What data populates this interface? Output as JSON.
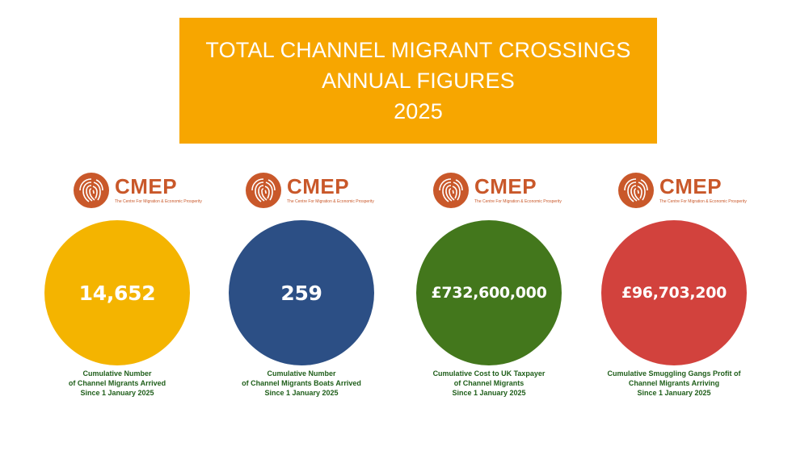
{
  "banner": {
    "line1": "TOTAL CHANNEL MIGRANT CROSSINGS",
    "line2": "ANNUAL FIGURES",
    "line3": "2025",
    "color": "#f7a600"
  },
  "logo": {
    "wordmark": "CMEP",
    "tagline": "The Centre For Migration & Economic Prosperity",
    "color": "#c9582a"
  },
  "stats": [
    {
      "value": "14,652",
      "caption": [
        "Cumulative Number",
        "of Channel Migrants Arrived",
        "Since 1 January 2025"
      ],
      "color": "#f4b400"
    },
    {
      "value": "259",
      "caption": [
        "Cumulative Number",
        "of Channel Migrants Boats Arrived",
        "Since 1 January 2025"
      ],
      "color": "#2c4f85"
    },
    {
      "value": "£732,600,000",
      "caption": [
        "Cumulative Cost to UK Taxpayer",
        "of  Channel Migrants",
        "Since 1 January 2025"
      ],
      "color": "#43771c"
    },
    {
      "value": "£96,703,200",
      "caption": [
        "Cumulative Smuggling Gangs Profit  of",
        "Channel Migrants Arriving",
        "Since 1 January 2025"
      ],
      "color": "#d2423d"
    }
  ]
}
